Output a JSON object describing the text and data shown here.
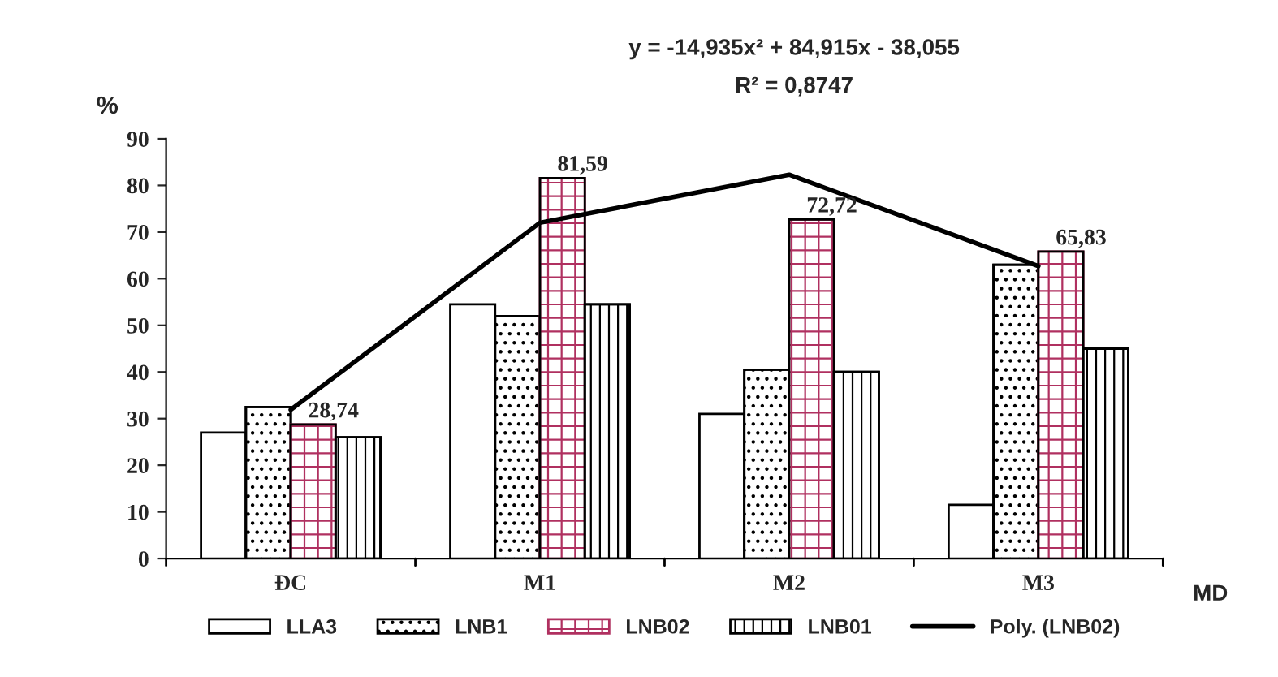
{
  "chart_data": {
    "type": "bar",
    "categories": [
      "ĐC",
      "M1",
      "M2",
      "M3"
    ],
    "series": [
      {
        "name": "LLA3",
        "color": "#ffffff",
        "values": [
          27,
          54.5,
          31,
          11.5
        ]
      },
      {
        "name": "LNB1",
        "color": "#000000",
        "values": [
          32.5,
          52,
          40.5,
          63
        ]
      },
      {
        "name": "LNB02",
        "color": "#b03060",
        "values": [
          28.74,
          81.59,
          72.72,
          65.83
        ],
        "value_labels": [
          "28,74",
          "81,59",
          "72,72",
          "65,83"
        ]
      },
      {
        "name": "LNB01",
        "color": "#000000",
        "values": [
          26,
          54.5,
          40,
          45
        ]
      },
      {
        "name": "Poly. (LNB02)",
        "type": "line",
        "color": "#000000",
        "values": [
          31.9,
          72.0,
          82.3,
          62.7
        ]
      }
    ],
    "ylabel": "%",
    "xlabel": "MD",
    "ylim": [
      0,
      90
    ],
    "yticks": [
      0,
      10,
      20,
      30,
      40,
      50,
      60,
      70,
      80,
      90
    ],
    "annotations": [
      "y = -14,935x² + 84,915x - 38,055",
      "R² = 0,8747"
    ],
    "grid": false,
    "legend": "bottom",
    "marker": "none",
    "line_style": "solid"
  }
}
